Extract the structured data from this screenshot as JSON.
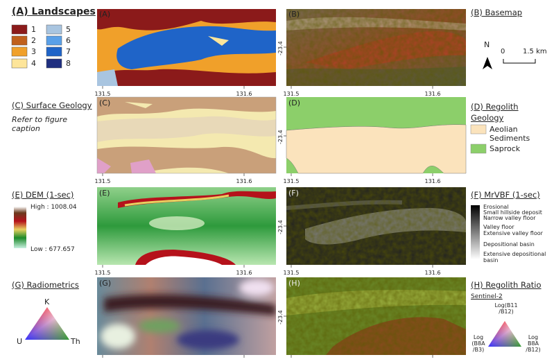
{
  "panels": [
    {
      "label": "(A)",
      "x_ticks": [
        "131.5",
        "131.6"
      ]
    },
    {
      "label": "(B)",
      "x_ticks": [
        "131.5",
        "131.6"
      ],
      "y_tick": "-23.4"
    },
    {
      "label": "(C)",
      "x_ticks": [
        "131.5",
        "131.6"
      ]
    },
    {
      "label": "(D)",
      "x_ticks": [
        "131.5",
        "131.6"
      ],
      "y_tick": "-23.4"
    },
    {
      "label": "(E)",
      "x_ticks": [
        "131.5",
        "131.6"
      ]
    },
    {
      "label": "(F)",
      "x_ticks": [
        "131.5",
        "131.6"
      ],
      "y_tick": "-23.4"
    },
    {
      "label": "(G)"
    },
    {
      "label": "(H)",
      "y_tick": "-23.4"
    }
  ],
  "landscapes": {
    "title": "(A) Landscapes",
    "legend": [
      "1",
      "2",
      "3",
      "4",
      "5",
      "6",
      "7",
      "8"
    ]
  },
  "basemap": {
    "title": "(B) Basemap",
    "north": "N",
    "scale": [
      "0",
      "1.5 km"
    ]
  },
  "surface_geology": {
    "title": "(C) Surface Geology",
    "note": "Refer to figure caption"
  },
  "regolith_geology": {
    "title": "(D) Regolith Geology",
    "legend": [
      "Aeolian Sediments",
      "Saprock"
    ]
  },
  "dem": {
    "title": "(E) DEM (1-sec)",
    "high": "High : 1008.04",
    "low": "Low : 677.657"
  },
  "mrvbf": {
    "title": "(F) MrVBF (1-sec)",
    "legend": [
      "Erosional",
      "Small hillside deposit",
      "Narrow valley floor",
      "Valley floor",
      "Extensive valley floor",
      "Depositional basin",
      "Extensive depositional basin"
    ]
  },
  "radiometrics": {
    "title": "(G) Radiometrics",
    "corners": [
      "K",
      "U",
      "Th"
    ]
  },
  "regolith_ratio": {
    "title": "(H) Regolith Ratio",
    "subtitle": "Sentinel-2",
    "corners": [
      "Log(B11 /B12)",
      "Log (B8A /B3)",
      "Log B8A /B12)"
    ]
  }
}
